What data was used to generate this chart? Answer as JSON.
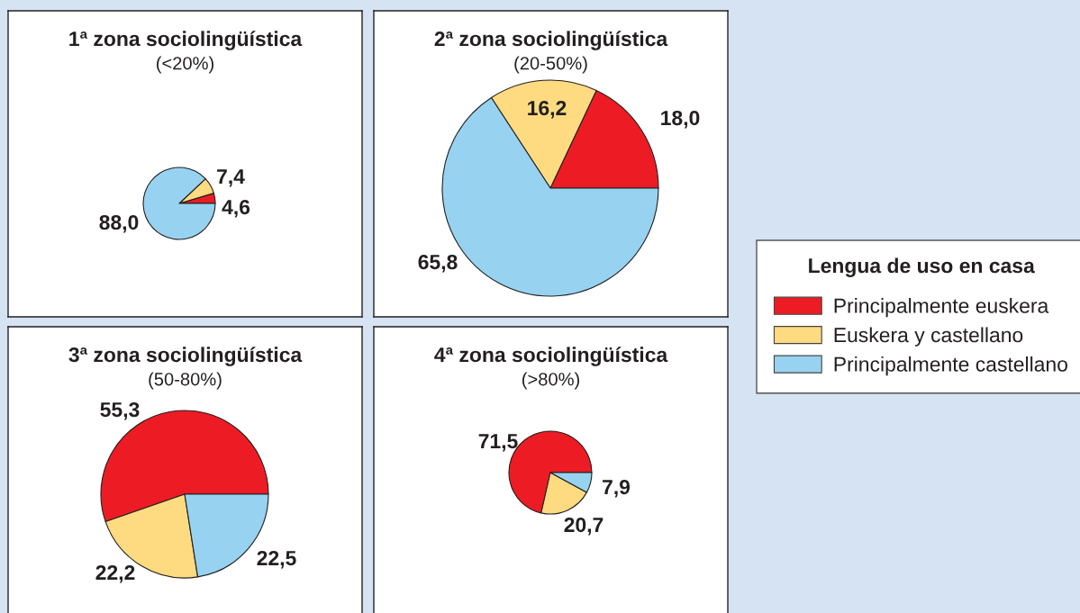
{
  "chart_data": [
    {
      "type": "pie",
      "title": "1ª zona sociolingüística",
      "subtitle": "(<20%)",
      "categories": [
        "Principalmente euskera",
        "Euskera y castellano",
        "Principalmente castellano"
      ],
      "values": [
        4.6,
        7.4,
        88.0
      ],
      "colors": [
        "#ed1c24",
        "#fedb80",
        "#97d3f1"
      ],
      "value_labels": [
        "4,6",
        "7,4",
        "88,0"
      ],
      "legend": "right",
      "legend_title": "Lengua de uso en casa"
    },
    {
      "type": "pie",
      "title": "2ª zona sociolingüística",
      "subtitle": "(20-50%)",
      "categories": [
        null,
        null,
        null
      ],
      "values": [
        18.0,
        16.2,
        65.8
      ],
      "colors": [
        "#ed1c24",
        "#fedb80",
        "#97d3f1"
      ],
      "value_labels": [
        "18,0",
        "16,2",
        "65,8"
      ]
    },
    {
      "type": "pie",
      "title": "3ª zona sociolingüística",
      "subtitle": "(50-80%)",
      "categories": [
        null,
        null,
        null
      ],
      "values": [
        55.3,
        22.2,
        22.5
      ],
      "colors": [
        "#ed1c24",
        "#fedb80",
        "#97d3f1"
      ],
      "value_labels": [
        "55,3",
        "22,2",
        "22,5"
      ]
    },
    {
      "type": "pie",
      "title": "4ª zona sociolingüística",
      "subtitle": "(>80%)",
      "categories": [
        null,
        null,
        null
      ],
      "values": [
        71.5,
        20.7,
        7.9
      ],
      "colors": [
        "#ed1c24",
        "#fedb80",
        "#97d3f1"
      ],
      "value_labels": [
        "71,5",
        "20,7",
        "7,9"
      ]
    }
  ]
}
